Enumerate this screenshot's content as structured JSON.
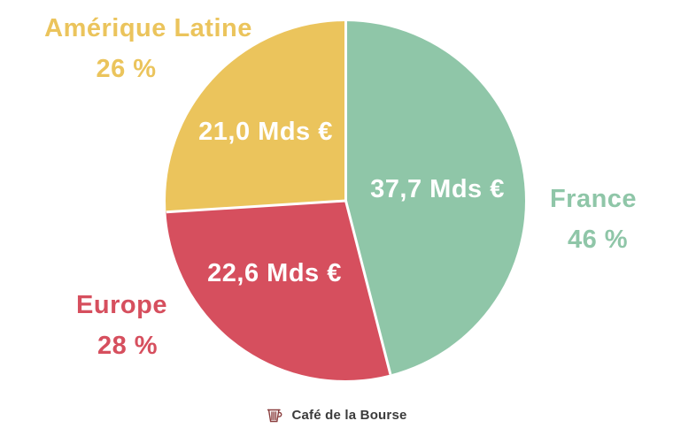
{
  "chart_data": {
    "type": "pie",
    "title": "",
    "unit": "Mds €",
    "legend_position": "around",
    "slices": [
      {
        "label": "France",
        "percent": 46,
        "percent_label": "46 %",
        "value": 37.7,
        "value_label": "37,7 Mds €",
        "color": "#8fc6a8"
      },
      {
        "label": "Europe",
        "percent": 28,
        "percent_label": "28 %",
        "value": 22.6,
        "value_label": "22,6 Mds €",
        "color": "#d64f5e"
      },
      {
        "label": "Amérique Latine",
        "percent": 26,
        "percent_label": "26 %",
        "value": 21.0,
        "value_label": "21,0 Mds €",
        "color": "#ebc45c"
      }
    ],
    "value_label_color": "#ffffff"
  },
  "footer": {
    "brand": "Café de la Bourse"
  }
}
